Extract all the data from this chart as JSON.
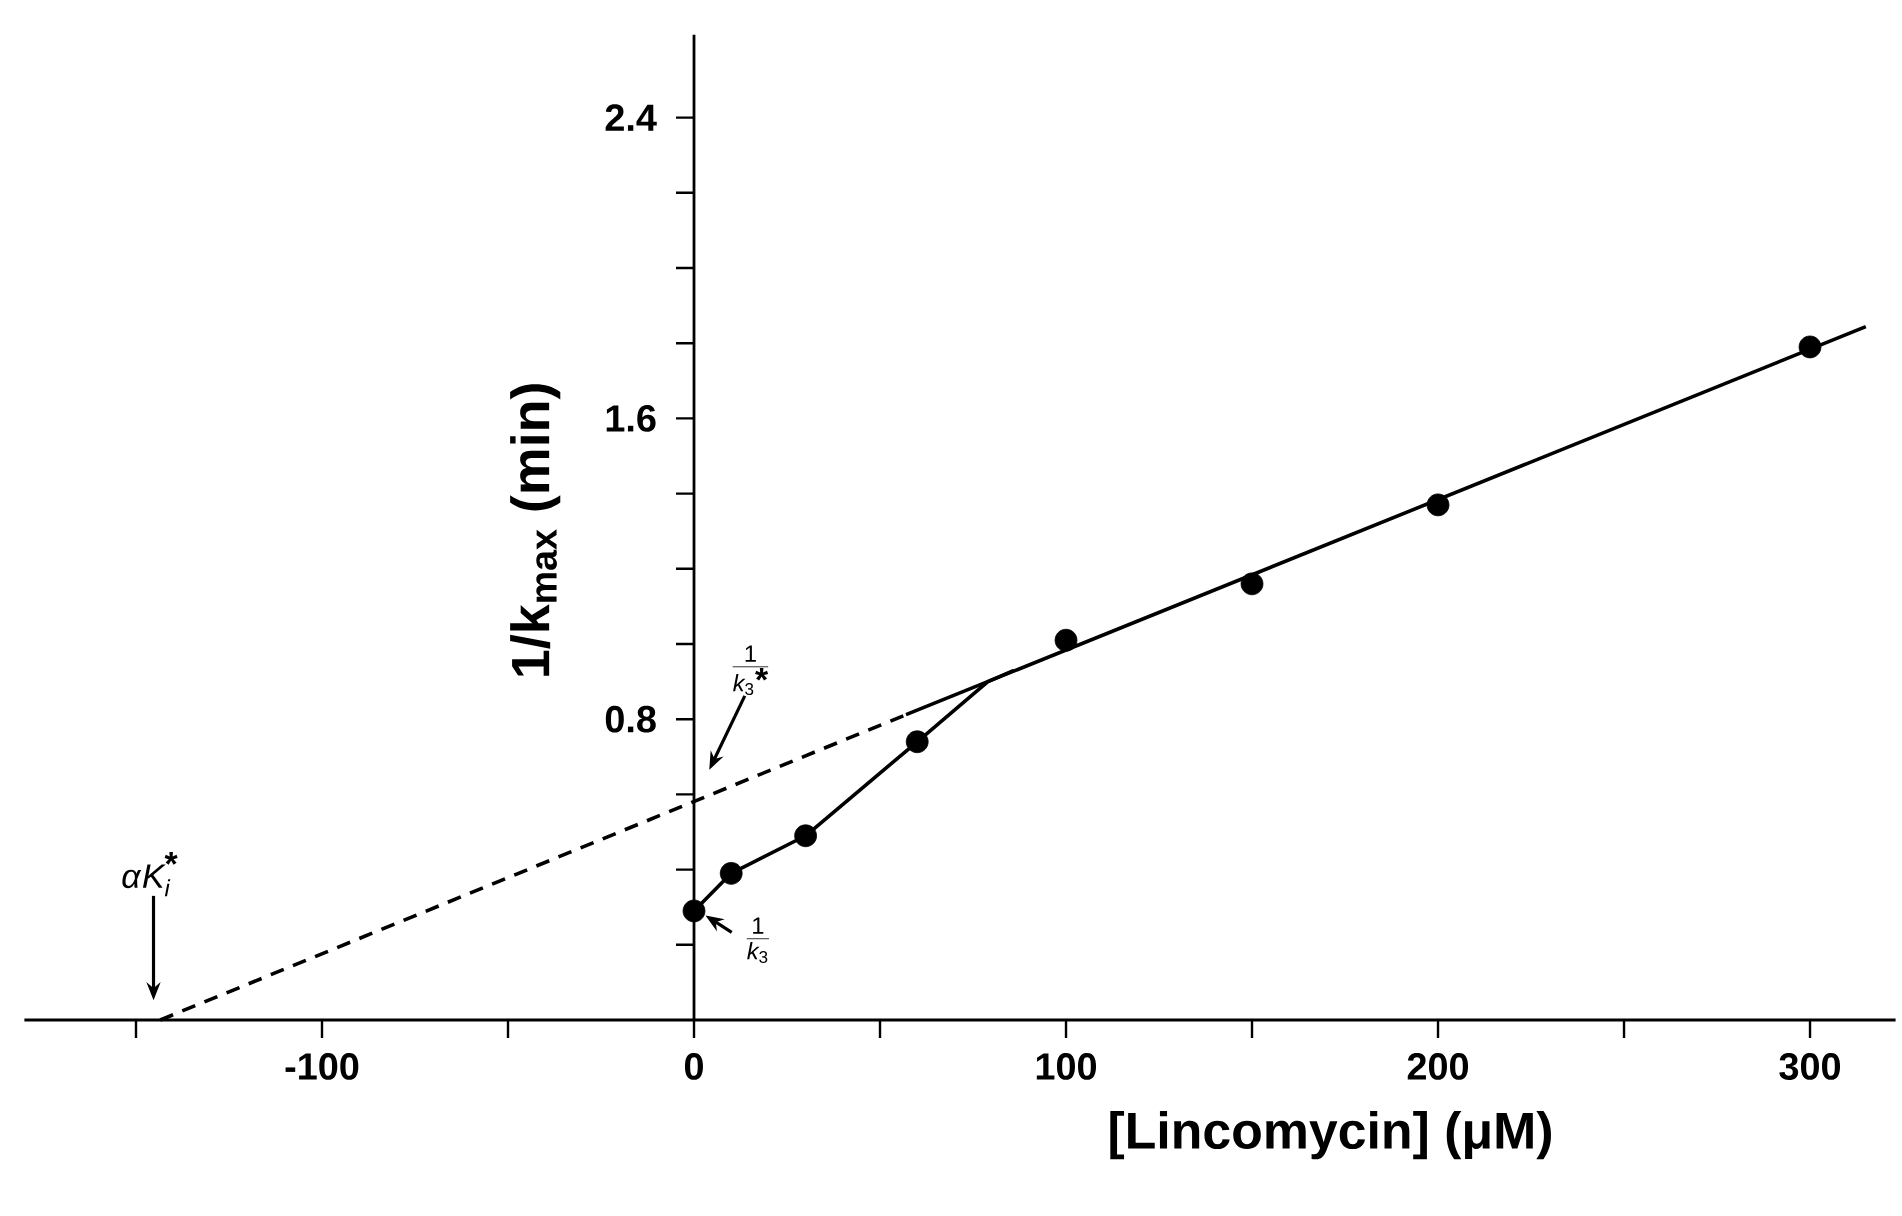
{
  "chart_data": {
    "type": "scatter",
    "xlabel": "[Lincomycin] (μM)",
    "ylabel": "1/k$_{max}$ (min)",
    "xlim": [
      -180,
      323
    ],
    "ylim": [
      0,
      2.62
    ],
    "xticks": [
      {
        "value": -150,
        "label": null
      },
      -100,
      {
        "value": -50,
        "label": null
      },
      0,
      {
        "value": 50,
        "label": null
      },
      100,
      {
        "value": 150,
        "label": null
      },
      200,
      {
        "value": 250,
        "label": null
      },
      300
    ],
    "yticks": [
      {
        "value": 0.2,
        "label": null
      },
      {
        "value": 0.4,
        "label": null
      },
      {
        "value": 0.6,
        "label": null
      },
      0.8,
      {
        "value": 1.0,
        "label": null
      },
      {
        "value": 1.2,
        "label": null
      },
      {
        "value": 1.4,
        "label": null
      },
      1.6,
      {
        "value": 1.8,
        "label": null
      },
      {
        "value": 2.0,
        "label": null
      },
      {
        "value": 2.2,
        "label": null
      },
      2.4
    ],
    "annotations": [
      "\\frac{1}{k_{3}\\mbox{*}}",
      "\\frac{1}{k_{3}}",
      "\\alpha K_{i}^{\\mbox{*}}"
    ],
    "series": [
      {
        "type": "scatter",
        "color": "#000000",
        "marker": "circle",
        "x": [
          0,
          10,
          30,
          60,
          100,
          150,
          200,
          300
        ],
        "values": [
          0.29,
          0.39,
          0.49,
          0.74,
          1.01,
          1.16,
          1.37,
          1.79
        ]
      },
      {
        "type": "line",
        "color": "#000000",
        "x": [
          0,
          10,
          30,
          60,
          79,
          86
        ],
        "values": [
          0.29,
          0.39,
          0.49,
          0.74,
          0.9,
          0.93
        ]
      },
      {
        "type": "line",
        "color": "#000000",
        "x": [
          57,
          315
        ],
        "values": [
          0.812,
          1.844
        ]
      },
      {
        "type": "line",
        "color": "#000000",
        "line_style": "dashed",
        "x": [
          -143.5,
          57
        ],
        "values": [
          0,
          0.812
        ]
      }
    ]
  }
}
